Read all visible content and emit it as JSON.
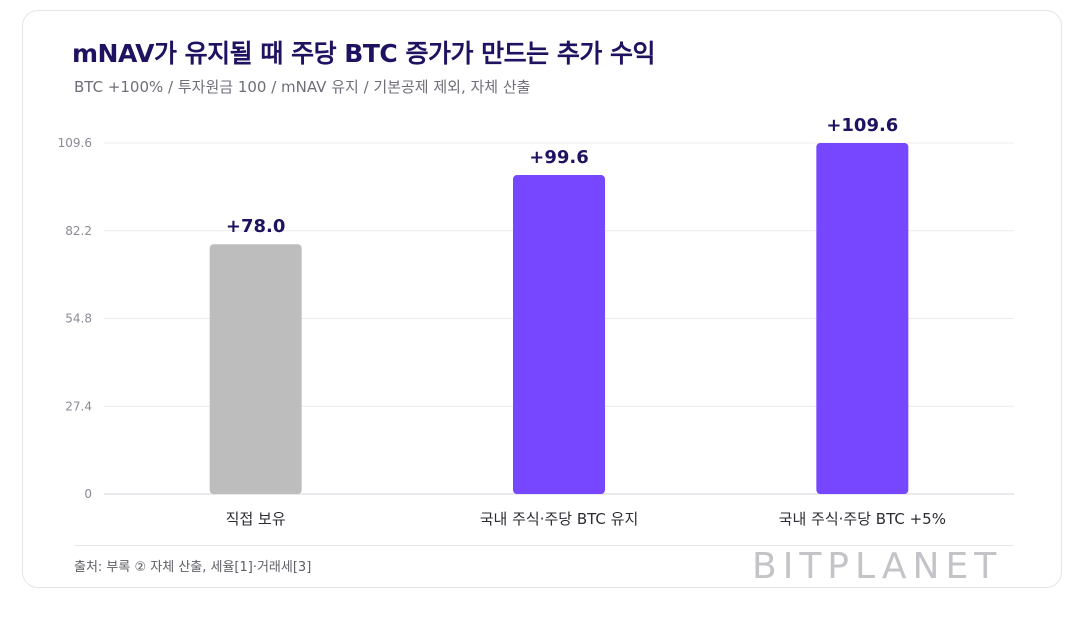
{
  "header": {
    "title": "mNAV가 유지될 때 주당 BTC 증가가 만드는 추가 수익",
    "subtitle": "BTC +100% / 투자원금 100 / mNAV 유지 / 기본공제 제외, 자체 산출"
  },
  "footer": {
    "source": "출처: 부록 ② 자체 산출, 세율[1]·거래세[3]",
    "brand": "BITPLANET"
  },
  "chart_data": {
    "type": "bar",
    "categories": [
      "직접 보유",
      "국내 주식·주당 BTC 유지",
      "국내 주식·주당 BTC +5%"
    ],
    "values": [
      78.0,
      99.6,
      109.6
    ],
    "data_labels": [
      "+78.0",
      "+99.6",
      "+109.6"
    ],
    "bar_colors": [
      "#bdbdbd",
      "#7647ff",
      "#7647ff"
    ],
    "label_color": "#1f1260",
    "yticks": [
      "0",
      "27.4",
      "54.8",
      "82.2",
      "109.6"
    ],
    "ytick_values": [
      0,
      27.4,
      54.8,
      82.2,
      109.6
    ],
    "ylim": [
      0,
      109.6
    ],
    "grid": true,
    "legend": "none"
  }
}
